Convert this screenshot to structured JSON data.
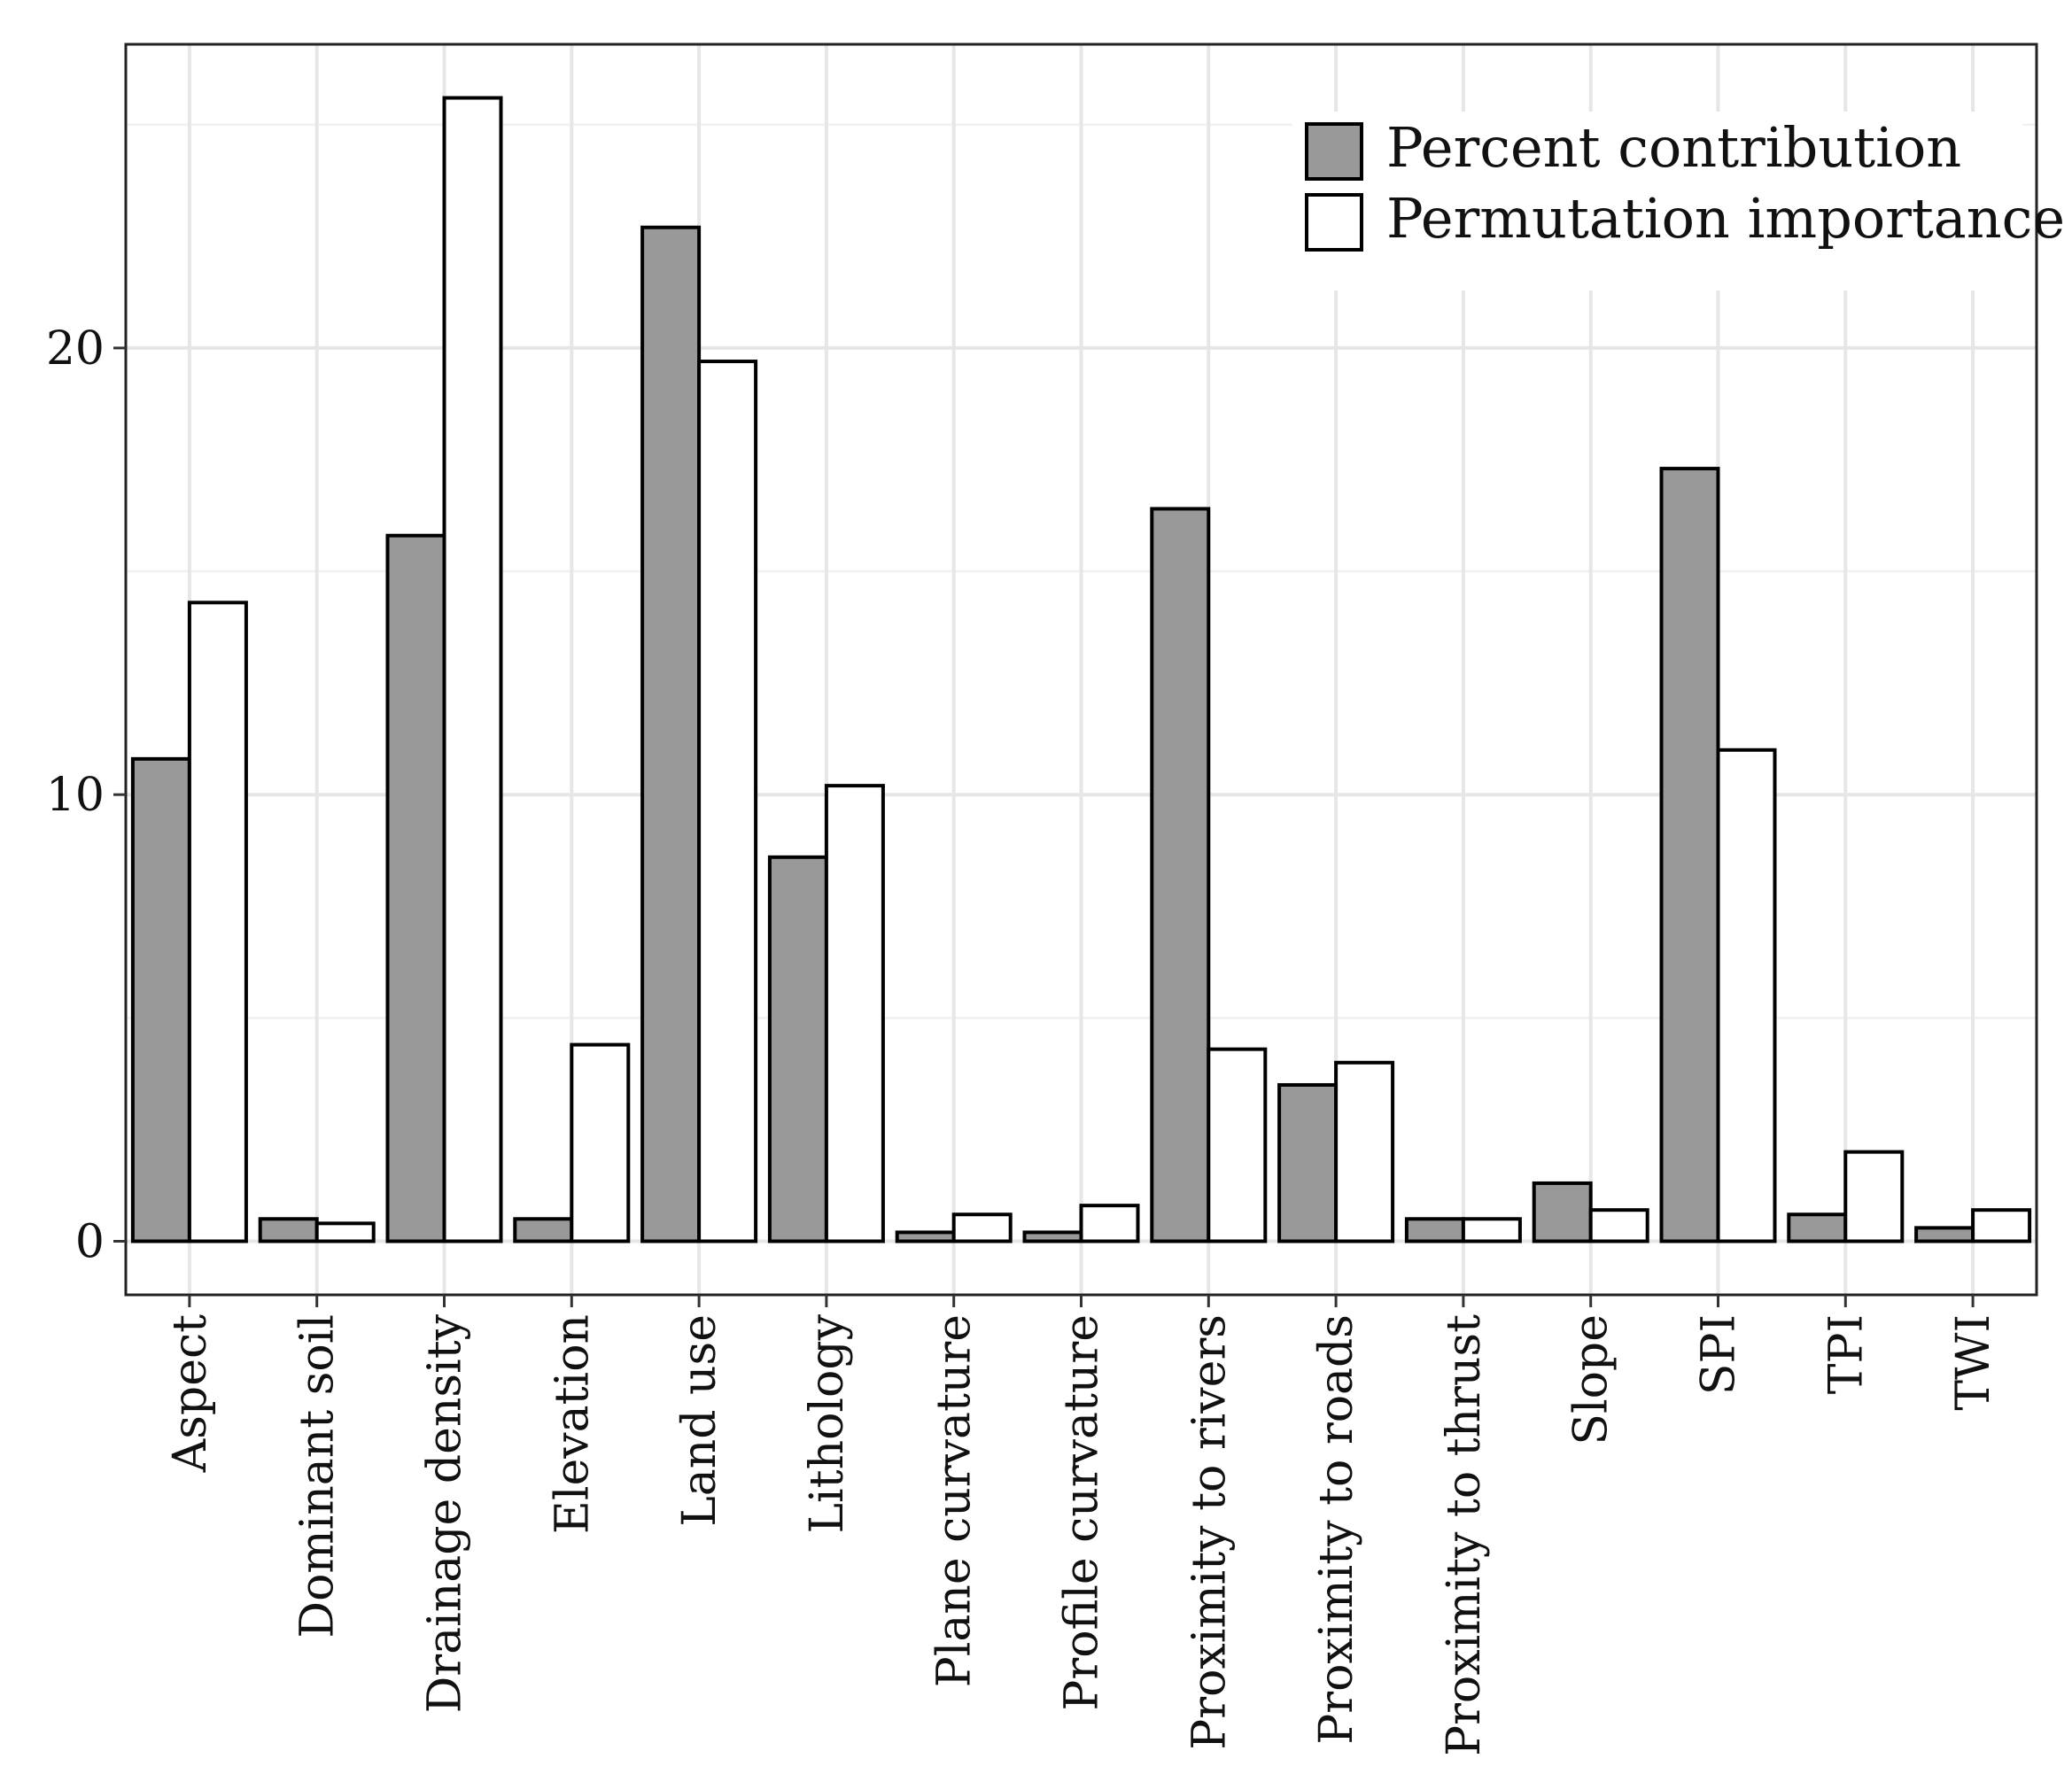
{
  "chart_data": {
    "type": "bar",
    "categories": [
      "Aspect",
      "Dominant soil",
      "Drainage density",
      "Elevation",
      "Land use",
      "Lithology",
      "Plane curvature",
      "Profile curvature",
      "Proximity to rivers",
      "Proximity to roads",
      "Proximity to thrust",
      "Slope",
      "SPI",
      "TPI",
      "TWI"
    ],
    "series": [
      {
        "name": "Percent contribution",
        "color": "#999999",
        "values": [
          10.8,
          0.5,
          15.8,
          0.5,
          22.7,
          8.6,
          0.2,
          0.2,
          16.4,
          3.5,
          0.5,
          1.3,
          17.3,
          0.6,
          0.3
        ]
      },
      {
        "name": "Permutation importance",
        "color": "#ffffff",
        "values": [
          14.3,
          0.4,
          25.6,
          4.4,
          19.7,
          10.2,
          0.6,
          0.8,
          4.3,
          4.0,
          0.5,
          0.7,
          11.0,
          2.0,
          0.7
        ]
      }
    ],
    "title": "",
    "xlabel": "",
    "ylabel": "",
    "ylim": [
      -1.2,
      26.8
    ],
    "yticks": [
      0,
      10,
      20
    ],
    "ytick_labels": [
      "0",
      "10",
      "20"
    ],
    "grid": true,
    "legend_position": "top-right"
  }
}
